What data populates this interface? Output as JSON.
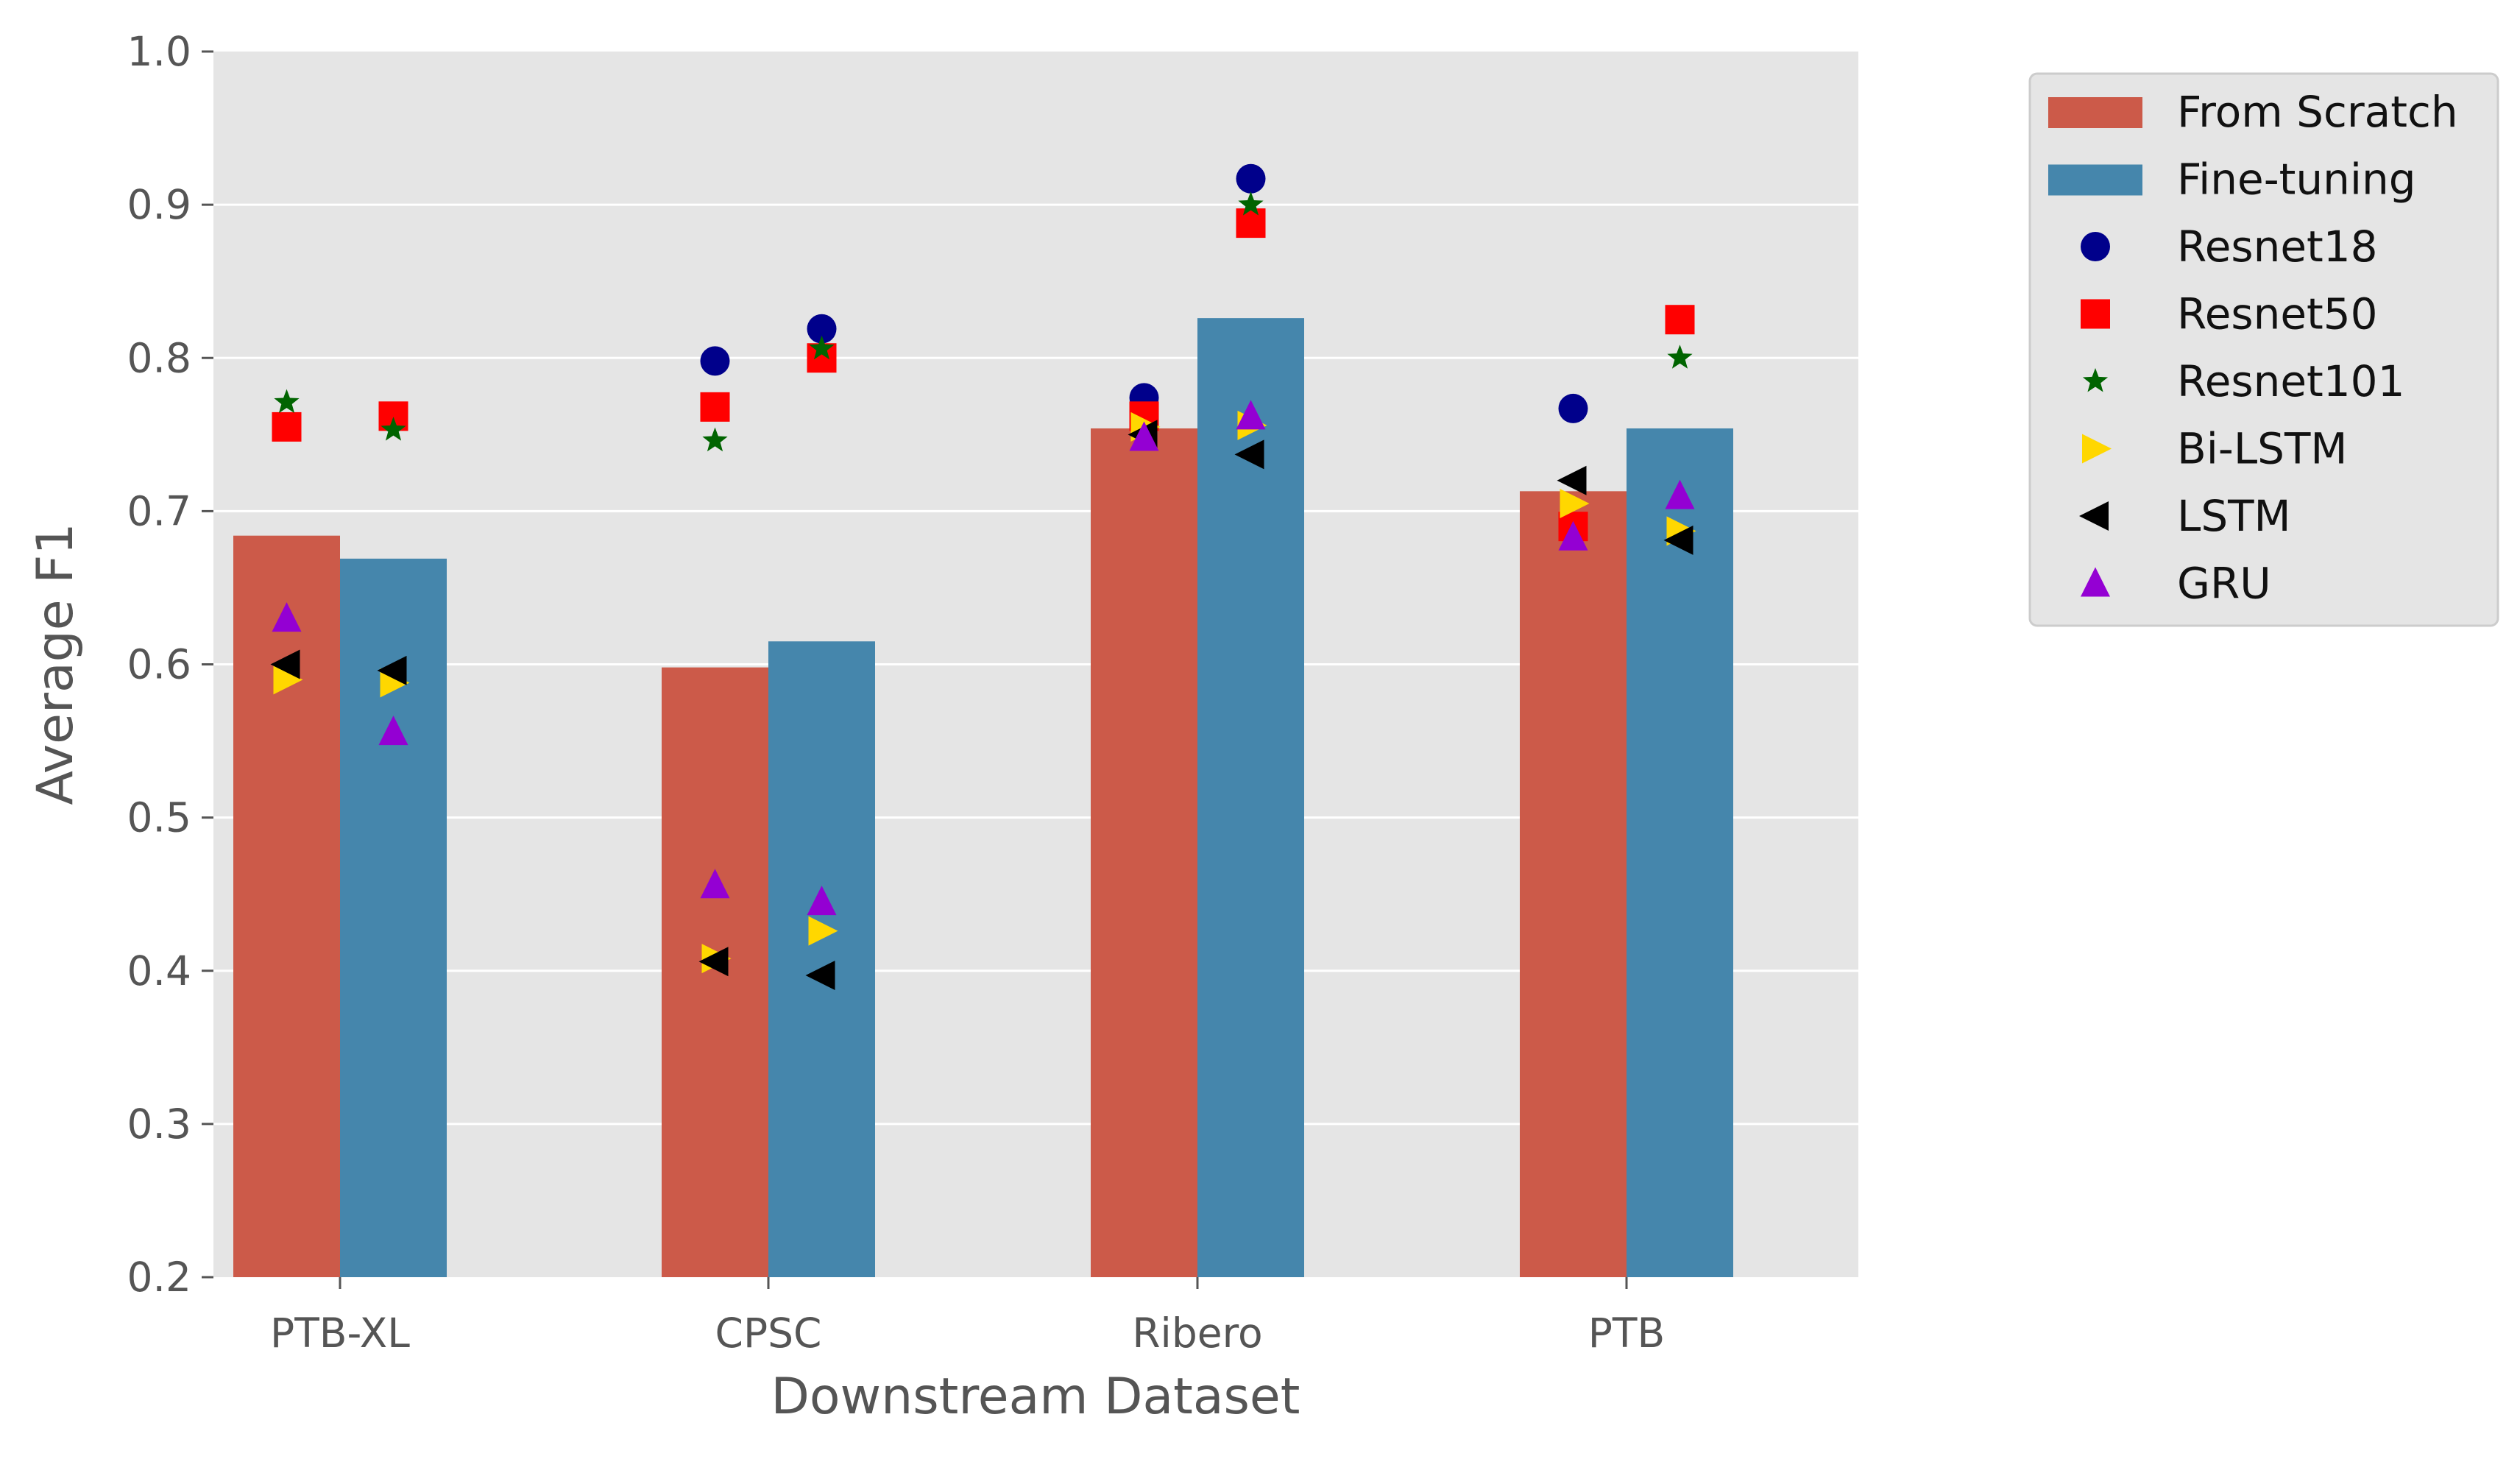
{
  "chart_data": {
    "type": "bar",
    "title": "",
    "xlabel": "Downstream Dataset",
    "ylabel": "Average F1",
    "ylim": [
      0.2,
      1.0
    ],
    "yticks": [
      "0.2",
      "0.3",
      "0.4",
      "0.5",
      "0.6",
      "0.7",
      "0.8",
      "0.9",
      "1.0"
    ],
    "categories": [
      "PTB-XL",
      "CPSC",
      "Ribero",
      "PTB"
    ],
    "grid": true,
    "legend_position": "outside-top-right",
    "series": [
      {
        "name": "From Scratch",
        "kind": "bar",
        "color": "#CC5A49",
        "values": [
          0.684,
          0.598,
          0.754,
          0.713
        ]
      },
      {
        "name": "Fine-tuning",
        "kind": "bar",
        "color": "#4586AC",
        "values": [
          0.669,
          0.615,
          0.826,
          0.754
        ]
      }
    ],
    "markers": [
      {
        "name": "Resnet18",
        "symbol": "circle",
        "color": "#00008B",
        "scratch": [
          null,
          0.798,
          0.774,
          0.767
        ],
        "finetune": [
          null,
          0.819,
          0.917,
          null
        ]
      },
      {
        "name": "Resnet50",
        "symbol": "square",
        "color": "#FF0000",
        "scratch": [
          0.755,
          0.768,
          0.762,
          0.69
        ],
        "finetune": [
          0.762,
          0.8,
          0.888,
          0.825
        ]
      },
      {
        "name": "Resnet101",
        "symbol": "star",
        "color": "#006400",
        "scratch": [
          0.771,
          0.746,
          0.747,
          null
        ],
        "finetune": [
          0.753,
          0.806,
          0.9,
          0.8
        ]
      },
      {
        "name": "Bi-LSTM",
        "symbol": "triangle-right",
        "color": "#FFD700",
        "scratch": [
          0.59,
          0.408,
          0.755,
          0.705
        ],
        "finetune": [
          0.588,
          0.426,
          0.756,
          0.687
        ]
      },
      {
        "name": "LSTM",
        "symbol": "triangle-left",
        "color": "#000000",
        "scratch": [
          0.6,
          0.406,
          0.75,
          0.72
        ],
        "finetune": [
          0.596,
          0.397,
          0.737,
          0.681
        ]
      },
      {
        "name": "GRU",
        "symbol": "triangle-up",
        "color": "#9400D3",
        "scratch": [
          0.63,
          0.456,
          0.748,
          0.683
        ],
        "finetune": [
          0.556,
          0.445,
          0.762,
          0.71
        ]
      }
    ]
  }
}
